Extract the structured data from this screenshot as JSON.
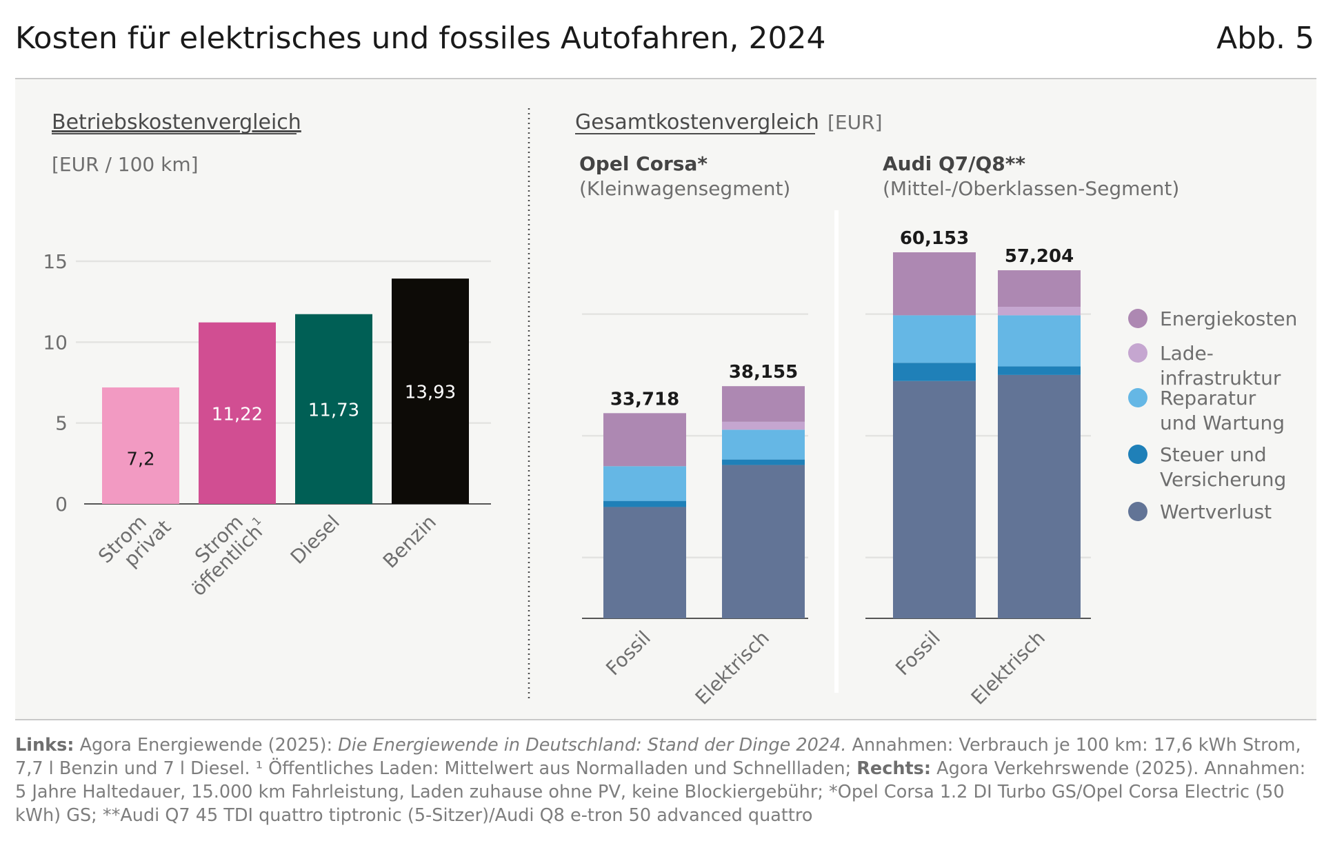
{
  "title": "Kosten für elektrisches und fossiles Autofahren, 2024",
  "figure_label": "Abb. 5",
  "source": {
    "links_label": "Links:",
    "links_text": " Agora Energiewende (2025): ",
    "links_italic": "Die Energiewende in Deutschland: Stand der Dinge 2024.",
    "links_rest": " Annahmen: Verbrauch je 100 km: 17,6 kWh Strom, 7,7 l Benzin und 7 l Diesel. ¹ Öffentliches Laden: Mittelwert aus Normalladen und Schnellladen; ",
    "rechts_label": "Rechts:",
    "rechts_text": " Agora Verkehrswende (2025). Annahmen: 5 Jahre Haltedauer, 15.000 km Fahrleistung, Laden zuhause ohne PV, keine Blockiergebühr; *Opel Corsa 1.2 DI Turbo GS/Opel Corsa Electric (50 kWh) GS; **Audi Q7 45 TDI quattro tiptronic (5-Sitzer)/Audi Q8 e-tron 50 advanced quattro"
  },
  "chart_data": [
    {
      "type": "bar",
      "title": "Betriebskostenvergleich",
      "unit": "[EUR / 100 km]",
      "categories": [
        {
          "line1": "Strom",
          "line2": "privat",
          "sup": ""
        },
        {
          "line1": "Strom",
          "line2": "öffentlich",
          "sup": "1"
        },
        {
          "line1": "Diesel",
          "line2": "",
          "sup": ""
        },
        {
          "line1": "Benzin",
          "line2": "",
          "sup": ""
        }
      ],
      "values": [
        7.2,
        11.22,
        11.73,
        13.93
      ],
      "value_labels": [
        "7,2",
        "11,22",
        "11,73",
        "13,93"
      ],
      "colors": [
        "#f29ac2",
        "#d14e92",
        "#005f55",
        "#0d0b07"
      ],
      "label_colors": [
        "#1a1a1a",
        "#ffffff",
        "#ffffff",
        "#ffffff"
      ],
      "yticks": [
        0,
        5,
        10,
        15
      ],
      "ylim": [
        0,
        15
      ],
      "grid": true
    },
    {
      "type": "bar",
      "stacked": true,
      "title": "Gesamtkostenvergleich",
      "unit": "[EUR]",
      "legend_position": "right",
      "stack_order": [
        "Wertverlust",
        "Steuer und Versicherung",
        "Reparatur und Wartung",
        "Ladeinfrastruktur",
        "Energiekosten"
      ],
      "series_colors": {
        "Energiekosten": "#ad88b2",
        "Ladeinfrastruktur": "#c5a6d0",
        "Reparatur und Wartung": "#65b7e5",
        "Steuer und Versicherung": "#1f80b8",
        "Wertverlust": "#627496"
      },
      "legend": [
        {
          "key": "Energiekosten",
          "lines": [
            "Energiekosten"
          ]
        },
        {
          "key": "Ladeinfrastruktur",
          "lines": [
            "Lade-",
            "infrastruktur"
          ]
        },
        {
          "key": "Reparatur und Wartung",
          "lines": [
            "Reparatur",
            "und Wartung"
          ]
        },
        {
          "key": "Steuer und Versicherung",
          "lines": [
            "Steuer und",
            "Versicherung"
          ]
        },
        {
          "key": "Wertverlust",
          "lines": [
            "Wertverlust"
          ]
        }
      ],
      "groups": [
        {
          "name": "Opel Corsa*",
          "segment": "(Kleinwagensegment)",
          "bars": [
            {
              "category": "Fossil",
              "total": 33718,
              "total_label": "33,718",
              "values": {
                "Wertverlust": 18300,
                "Steuer und Versicherung": 1000,
                "Reparatur und Wartung": 5700,
                "Ladeinfrastruktur": 0,
                "Energiekosten": 8718
              }
            },
            {
              "category": "Elektrisch",
              "total": 38155,
              "total_label": "38,155",
              "values": {
                "Wertverlust": 25200,
                "Steuer und Versicherung": 900,
                "Reparatur und Wartung": 4900,
                "Ladeinfrastruktur": 1300,
                "Energiekosten": 5855
              }
            }
          ]
        },
        {
          "name": "Audi Q7/Q8**",
          "segment": "(Mittel-/Oberklassen-Segment)",
          "bars": [
            {
              "category": "Fossil",
              "total": 60153,
              "total_label": "60,153",
              "values": {
                "Wertverlust": 39000,
                "Steuer und Versicherung": 3000,
                "Reparatur und Wartung": 7800,
                "Ladeinfrastruktur": 0,
                "Energiekosten": 10353
              }
            },
            {
              "category": "Elektrisch",
              "total": 57204,
              "total_label": "57,204",
              "values": {
                "Wertverlust": 40000,
                "Steuer und Versicherung": 1400,
                "Reparatur und Wartung": 8400,
                "Ladeinfrastruktur": 1400,
                "Energiekosten": 6004
              }
            }
          ]
        }
      ],
      "ylim": [
        0,
        60153
      ],
      "grid": true
    }
  ]
}
